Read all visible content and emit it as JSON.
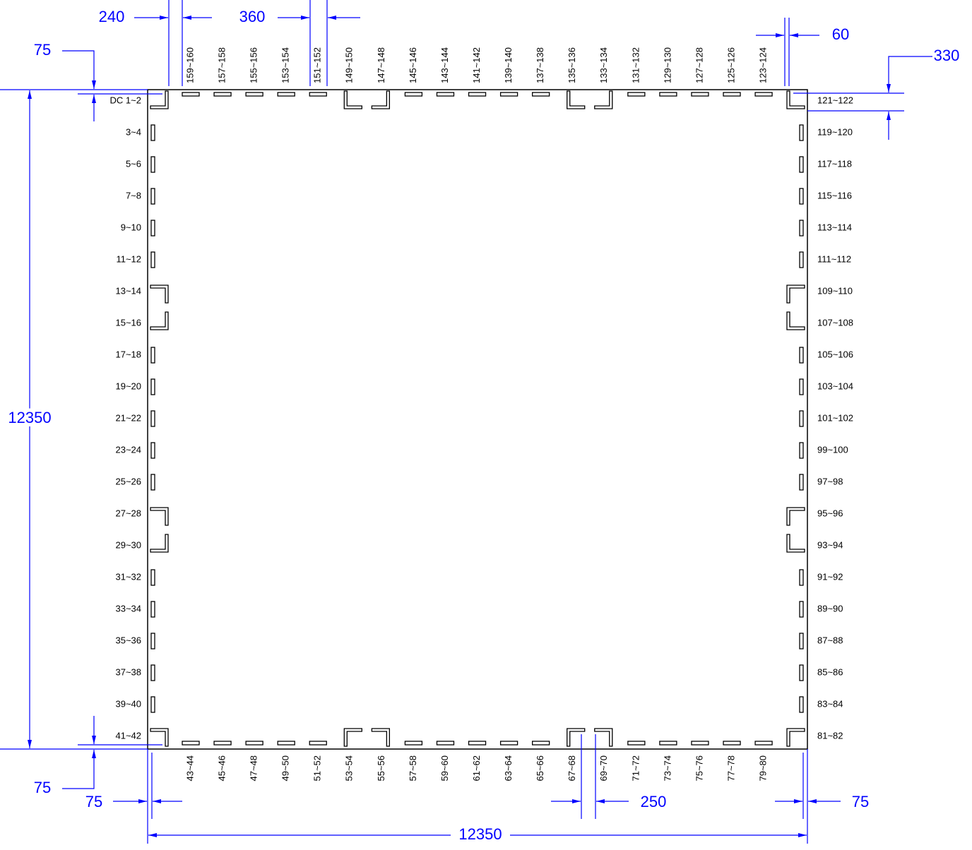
{
  "dimensions": [
    "240",
    "360",
    "75",
    "60",
    "330",
    "12350",
    "75",
    "75",
    "250",
    "75",
    "12350"
  ],
  "pins": {
    "left": [
      "DC 1~2",
      "3~4",
      "5~6",
      "7~8",
      "9~10",
      "11~12",
      "13~14",
      "15~16",
      "17~18",
      "19~20",
      "21~22",
      "23~24",
      "25~26",
      "27~28",
      "29~30",
      "31~32",
      "33~34",
      "35~36",
      "37~38",
      "39~40",
      "41~42"
    ],
    "right": [
      "121~122",
      "119~120",
      "117~118",
      "115~116",
      "113~114",
      "111~112",
      "109~110",
      "107~108",
      "105~106",
      "103~104",
      "101~102",
      "99~100",
      "97~98",
      "95~96",
      "93~94",
      "91~92",
      "89~90",
      "87~88",
      "85~86",
      "83~84",
      "81~82"
    ],
    "top": [
      "159~160",
      "157~158",
      "155~156",
      "153~154",
      "151~152",
      "149~150",
      "147~148",
      "145~146",
      "143~144",
      "141~142",
      "139~140",
      "137~138",
      "135~136",
      "133~134",
      "131~132",
      "129~130",
      "127~128",
      "125~126",
      "123~124"
    ],
    "bottom": [
      "43~44",
      "45~46",
      "47~48",
      "49~50",
      "51~52",
      "53~54",
      "55~56",
      "57~58",
      "59~60",
      "61~62",
      "63~64",
      "65~66",
      "67~68",
      "69~70",
      "71~72",
      "73~74",
      "75~76",
      "77~78",
      "79~80"
    ]
  }
}
